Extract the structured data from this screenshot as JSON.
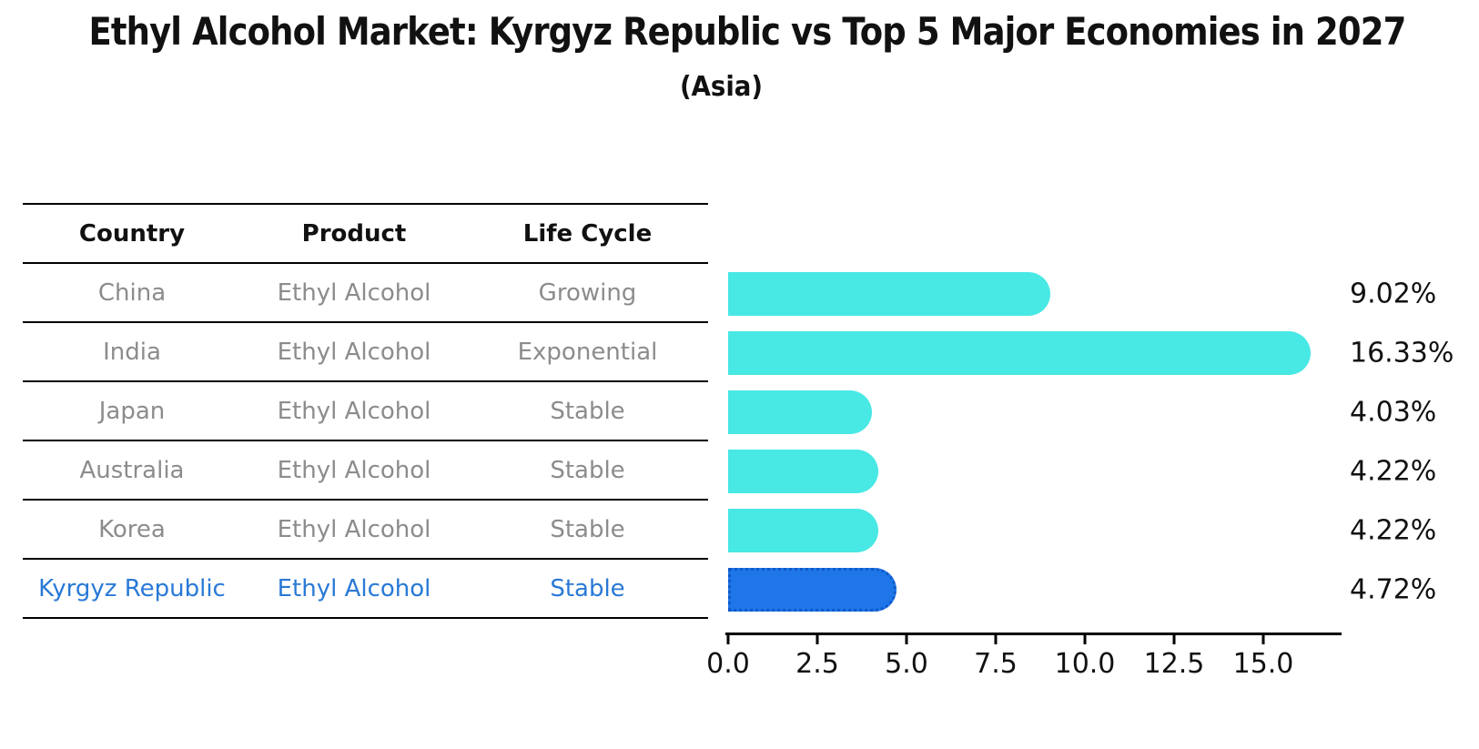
{
  "title": "Ethyl Alcohol Market: Kyrgyz Republic vs Top 5 Major Economies in 2027",
  "subtitle": "(Asia)",
  "colors": {
    "bar": "#48e8e4",
    "highlight_bar": "#1e76e8",
    "highlight_border": "#1059c9",
    "highlight_text": "#2979d6",
    "table_text": "#8c8c8c",
    "header_text": "#111111"
  },
  "table": {
    "columns": [
      "Country",
      "Product",
      "Life Cycle"
    ],
    "rows": [
      {
        "country": "China",
        "product": "Ethyl Alcohol",
        "life_cycle": "Growing",
        "highlighted": false
      },
      {
        "country": "India",
        "product": "Ethyl Alcohol",
        "life_cycle": "Exponential",
        "highlighted": false
      },
      {
        "country": "Japan",
        "product": "Ethyl Alcohol",
        "life_cycle": "Stable",
        "highlighted": false
      },
      {
        "country": "Australia",
        "product": "Ethyl Alcohol",
        "life_cycle": "Stable",
        "highlighted": false
      },
      {
        "country": "Korea",
        "product": "Ethyl Alcohol",
        "life_cycle": "Stable",
        "highlighted": false
      },
      {
        "country": "Kyrgyz Republic",
        "product": "Ethyl Alcohol",
        "life_cycle": "Stable",
        "highlighted": true
      }
    ]
  },
  "chart_data": {
    "type": "bar",
    "orientation": "horizontal",
    "categories": [
      "China",
      "India",
      "Japan",
      "Australia",
      "Korea",
      "Kyrgyz Republic"
    ],
    "values": [
      9.02,
      16.33,
      4.03,
      4.22,
      4.22,
      4.72
    ],
    "value_labels": [
      "9.02%",
      "16.33%",
      "4.03%",
      "4.22%",
      "4.22%",
      "4.72%"
    ],
    "highlight_index": 5,
    "x_ticks": [
      0.0,
      2.5,
      5.0,
      7.5,
      10.0,
      12.5,
      15.0
    ],
    "x_tick_labels": [
      "0.0",
      "2.5",
      "5.0",
      "7.5",
      "10.0",
      "12.5",
      "15.0"
    ],
    "xlim": [
      0,
      17.17
    ],
    "xlabel": "",
    "ylabel": "",
    "grid": false,
    "legend": false,
    "title": "Ethyl Alcohol Market: Kyrgyz Republic vs Top 5 Major Economies in 2027",
    "subtitle": "(Asia)"
  }
}
